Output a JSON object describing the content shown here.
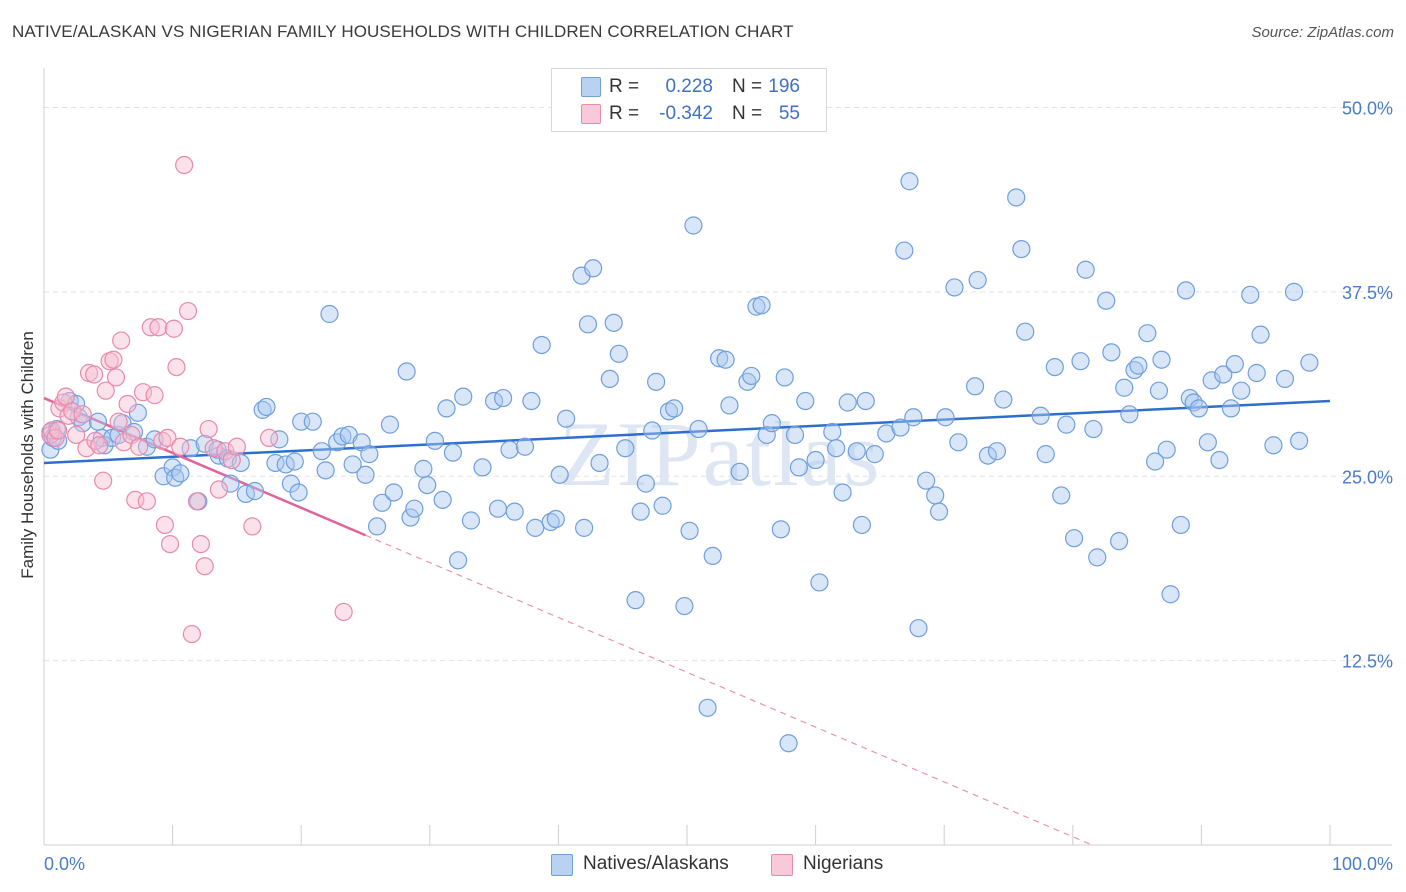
{
  "title": "NATIVE/ALASKAN VS NIGERIAN FAMILY HOUSEHOLDS WITH CHILDREN CORRELATION CHART",
  "source": "Source: ZipAtlas.com",
  "watermark": "ZIPatlas",
  "colors": {
    "blue_fill": "#a9c8ef",
    "blue_stroke": "#6f9fdc",
    "blue_line": "#2e6fce",
    "pink_fill": "#f7bcd0",
    "pink_stroke": "#e88aab",
    "pink_line": "#e0639a",
    "tick_text": "#4a7cc9",
    "grid": "#e3e3e3"
  },
  "legend": {
    "rows": [
      {
        "r_label": "R =",
        "r_value": "0.228",
        "n_label": "N =",
        "n_value": "196"
      },
      {
        "r_label": "R =",
        "r_value": "-0.342",
        "n_label": "N =",
        "n_value": "55"
      }
    ]
  },
  "bottom_legend": {
    "series1": "Natives/Alaskans",
    "series2": "Nigerians"
  },
  "chart_data": {
    "type": "scatter",
    "title": "NATIVE/ALASKAN VS NIGERIAN FAMILY HOUSEHOLDS WITH CHILDREN CORRELATION CHART",
    "xlabel": "",
    "ylabel": "Family Households with Children",
    "xlim": [
      0,
      100
    ],
    "ylim": [
      0,
      52
    ],
    "x_tick_labels": [
      "0.0%",
      "100.0%"
    ],
    "y_ticks": [
      12.5,
      25.0,
      37.5,
      50.0
    ],
    "y_tick_labels": [
      "12.5%",
      "25.0%",
      "37.5%",
      "50.0%"
    ],
    "grid": true,
    "legend_position": "top-center",
    "series": [
      {
        "name": "Natives/Alaskans",
        "R": 0.228,
        "N": 196,
        "trend": {
          "x": [
            0,
            100
          ],
          "y": [
            25.9,
            30.1
          ]
        },
        "points": [
          [
            0.5,
            26.8
          ],
          [
            0.5,
            28.0
          ],
          [
            0.7,
            27.6
          ],
          [
            1.0,
            28.2
          ],
          [
            1.1,
            27.4
          ],
          [
            2.0,
            30.1
          ],
          [
            2.5,
            29.9
          ],
          [
            2.7,
            29.0
          ],
          [
            3.0,
            28.6
          ],
          [
            4.2,
            28.7
          ],
          [
            4.5,
            27.6
          ],
          [
            4.7,
            27.1
          ],
          [
            5.3,
            27.6
          ],
          [
            5.8,
            27.8
          ],
          [
            6.1,
            28.6
          ],
          [
            7.0,
            28.0
          ],
          [
            7.3,
            29.3
          ],
          [
            8.0,
            27.0
          ],
          [
            8.6,
            27.5
          ],
          [
            9.3,
            25.0
          ],
          [
            10.0,
            25.6
          ],
          [
            10.2,
            24.9
          ],
          [
            10.6,
            25.2
          ],
          [
            11.4,
            26.9
          ],
          [
            12.0,
            23.3
          ],
          [
            12.5,
            27.2
          ],
          [
            13.6,
            26.4
          ],
          [
            13.5,
            26.8
          ],
          [
            14.3,
            26.2
          ],
          [
            14.5,
            24.5
          ],
          [
            15.3,
            25.9
          ],
          [
            15.7,
            23.8
          ],
          [
            16.4,
            24.0
          ],
          [
            17.0,
            29.5
          ],
          [
            17.3,
            29.7
          ],
          [
            18.0,
            25.9
          ],
          [
            18.3,
            27.5
          ],
          [
            18.8,
            25.8
          ],
          [
            19.2,
            24.5
          ],
          [
            19.5,
            26.0
          ],
          [
            19.8,
            23.9
          ],
          [
            20.0,
            28.7
          ],
          [
            20.9,
            28.7
          ],
          [
            21.6,
            26.7
          ],
          [
            21.9,
            25.4
          ],
          [
            22.2,
            36.0
          ],
          [
            22.8,
            27.3
          ],
          [
            23.2,
            27.7
          ],
          [
            23.7,
            27.8
          ],
          [
            24.0,
            25.8
          ],
          [
            24.7,
            27.3
          ],
          [
            25.0,
            25.1
          ],
          [
            25.3,
            26.5
          ],
          [
            25.9,
            21.6
          ],
          [
            26.3,
            23.2
          ],
          [
            26.9,
            28.5
          ],
          [
            27.2,
            23.9
          ],
          [
            28.2,
            32.1
          ],
          [
            28.5,
            22.2
          ],
          [
            28.8,
            22.8
          ],
          [
            29.5,
            25.5
          ],
          [
            29.8,
            24.4
          ],
          [
            30.4,
            27.4
          ],
          [
            31.0,
            23.4
          ],
          [
            31.3,
            29.6
          ],
          [
            31.8,
            26.6
          ],
          [
            32.2,
            19.3
          ],
          [
            32.6,
            30.4
          ],
          [
            33.2,
            22.0
          ],
          [
            34.1,
            25.6
          ],
          [
            35.0,
            30.1
          ],
          [
            35.3,
            22.8
          ],
          [
            35.7,
            30.3
          ],
          [
            36.2,
            26.8
          ],
          [
            36.6,
            22.6
          ],
          [
            37.4,
            27.0
          ],
          [
            37.9,
            30.1
          ],
          [
            38.2,
            21.5
          ],
          [
            38.7,
            33.9
          ],
          [
            39.4,
            21.9
          ],
          [
            39.8,
            22.1
          ],
          [
            40.1,
            25.1
          ],
          [
            40.6,
            28.9
          ],
          [
            41.8,
            38.6
          ],
          [
            42.0,
            21.5
          ],
          [
            42.3,
            35.3
          ],
          [
            42.7,
            39.1
          ],
          [
            43.2,
            25.9
          ],
          [
            44.0,
            31.6
          ],
          [
            44.3,
            35.4
          ],
          [
            44.7,
            33.3
          ],
          [
            45.2,
            26.9
          ],
          [
            46.0,
            16.6
          ],
          [
            46.4,
            22.6
          ],
          [
            46.8,
            24.5
          ],
          [
            47.3,
            28.1
          ],
          [
            47.6,
            31.4
          ],
          [
            48.1,
            23.0
          ],
          [
            48.6,
            29.4
          ],
          [
            49.0,
            29.6
          ],
          [
            49.8,
            16.2
          ],
          [
            50.2,
            21.3
          ],
          [
            50.5,
            42.0
          ],
          [
            50.9,
            28.2
          ],
          [
            51.6,
            9.3
          ],
          [
            52.0,
            19.6
          ],
          [
            52.5,
            33.0
          ],
          [
            53.0,
            32.9
          ],
          [
            53.3,
            29.8
          ],
          [
            54.1,
            25.3
          ],
          [
            54.7,
            31.4
          ],
          [
            55.0,
            31.8
          ],
          [
            55.4,
            36.5
          ],
          [
            55.8,
            36.6
          ],
          [
            56.2,
            27.8
          ],
          [
            56.6,
            28.6
          ],
          [
            57.3,
            21.4
          ],
          [
            57.6,
            31.7
          ],
          [
            57.9,
            6.9
          ],
          [
            58.4,
            27.8
          ],
          [
            58.7,
            25.6
          ],
          [
            59.2,
            30.1
          ],
          [
            60.0,
            26.1
          ],
          [
            60.3,
            17.8
          ],
          [
            61.3,
            28.0
          ],
          [
            61.6,
            26.9
          ],
          [
            62.1,
            23.9
          ],
          [
            62.5,
            30.0
          ],
          [
            63.2,
            26.7
          ],
          [
            63.6,
            21.7
          ],
          [
            63.9,
            30.1
          ],
          [
            64.6,
            26.5
          ],
          [
            65.5,
            27.9
          ],
          [
            66.6,
            28.3
          ],
          [
            66.9,
            40.3
          ],
          [
            67.3,
            45.0
          ],
          [
            67.6,
            29.0
          ],
          [
            68.0,
            14.7
          ],
          [
            68.6,
            24.7
          ],
          [
            69.3,
            23.7
          ],
          [
            69.6,
            22.6
          ],
          [
            70.1,
            29.0
          ],
          [
            70.8,
            37.8
          ],
          [
            71.1,
            27.3
          ],
          [
            72.4,
            31.1
          ],
          [
            72.6,
            38.3
          ],
          [
            73.4,
            26.4
          ],
          [
            74.1,
            26.7
          ],
          [
            74.6,
            30.2
          ],
          [
            75.6,
            43.9
          ],
          [
            76.0,
            40.4
          ],
          [
            76.3,
            34.8
          ],
          [
            77.5,
            29.1
          ],
          [
            77.9,
            26.5
          ],
          [
            78.6,
            32.4
          ],
          [
            79.1,
            23.7
          ],
          [
            79.5,
            28.5
          ],
          [
            80.1,
            20.8
          ],
          [
            80.6,
            32.8
          ],
          [
            81.0,
            39.0
          ],
          [
            81.6,
            28.2
          ],
          [
            81.9,
            19.5
          ],
          [
            82.6,
            36.9
          ],
          [
            83.0,
            33.4
          ],
          [
            83.6,
            20.6
          ],
          [
            84.0,
            31.0
          ],
          [
            84.4,
            29.2
          ],
          [
            84.8,
            32.2
          ],
          [
            85.1,
            32.5
          ],
          [
            85.8,
            34.7
          ],
          [
            86.4,
            26.0
          ],
          [
            86.7,
            30.8
          ],
          [
            86.9,
            32.9
          ],
          [
            87.3,
            26.8
          ],
          [
            87.6,
            17.0
          ],
          [
            88.4,
            21.7
          ],
          [
            88.8,
            37.6
          ],
          [
            89.1,
            30.3
          ],
          [
            89.4,
            30.0
          ],
          [
            89.8,
            29.6
          ],
          [
            90.5,
            27.3
          ],
          [
            90.8,
            31.5
          ],
          [
            91.4,
            26.1
          ],
          [
            91.7,
            31.9
          ],
          [
            92.3,
            29.6
          ],
          [
            92.6,
            32.6
          ],
          [
            93.1,
            30.8
          ],
          [
            93.8,
            37.3
          ],
          [
            94.3,
            32.0
          ],
          [
            94.6,
            34.6
          ],
          [
            95.6,
            27.1
          ],
          [
            96.5,
            31.6
          ],
          [
            97.2,
            37.5
          ],
          [
            97.6,
            27.4
          ],
          [
            98.4,
            32.7
          ]
        ]
      },
      {
        "name": "Nigerians",
        "R": -0.342,
        "N": 55,
        "trend": {
          "x": [
            0,
            25
          ],
          "y": [
            30.3,
            21.0
          ],
          "dashed_extension": {
            "x": [
              25,
              81.5
            ],
            "y": [
              21.0,
              0
            ]
          }
        },
        "points": [
          [
            0.5,
            27.8
          ],
          [
            0.6,
            28.1
          ],
          [
            0.9,
            27.6
          ],
          [
            1.1,
            28.1
          ],
          [
            1.2,
            29.6
          ],
          [
            1.5,
            30.0
          ],
          [
            1.7,
            30.4
          ],
          [
            1.9,
            29.1
          ],
          [
            2.2,
            29.4
          ],
          [
            2.5,
            27.8
          ],
          [
            3.0,
            29.2
          ],
          [
            3.3,
            26.9
          ],
          [
            3.5,
            32.0
          ],
          [
            3.9,
            31.9
          ],
          [
            4.0,
            27.4
          ],
          [
            4.3,
            27.1
          ],
          [
            4.6,
            24.7
          ],
          [
            4.8,
            30.8
          ],
          [
            5.1,
            32.8
          ],
          [
            5.4,
            32.9
          ],
          [
            5.6,
            31.7
          ],
          [
            5.8,
            28.7
          ],
          [
            6.0,
            34.2
          ],
          [
            6.2,
            27.3
          ],
          [
            6.5,
            29.9
          ],
          [
            6.8,
            27.8
          ],
          [
            7.1,
            23.4
          ],
          [
            7.4,
            27.0
          ],
          [
            7.7,
            30.7
          ],
          [
            8.0,
            23.3
          ],
          [
            8.3,
            35.1
          ],
          [
            8.6,
            30.5
          ],
          [
            8.9,
            35.1
          ],
          [
            9.2,
            27.4
          ],
          [
            9.4,
            21.7
          ],
          [
            9.6,
            27.6
          ],
          [
            9.8,
            20.4
          ],
          [
            10.1,
            35.0
          ],
          [
            10.3,
            32.4
          ],
          [
            10.6,
            27.0
          ],
          [
            10.9,
            46.1
          ],
          [
            11.2,
            36.2
          ],
          [
            11.5,
            14.3
          ],
          [
            11.9,
            23.3
          ],
          [
            12.2,
            20.4
          ],
          [
            12.5,
            18.9
          ],
          [
            12.8,
            28.2
          ],
          [
            13.2,
            26.9
          ],
          [
            13.6,
            24.1
          ],
          [
            14.1,
            26.7
          ],
          [
            14.6,
            26.1
          ],
          [
            15.0,
            27.0
          ],
          [
            16.2,
            21.6
          ],
          [
            17.5,
            27.6
          ],
          [
            23.3,
            15.8
          ]
        ]
      }
    ]
  }
}
